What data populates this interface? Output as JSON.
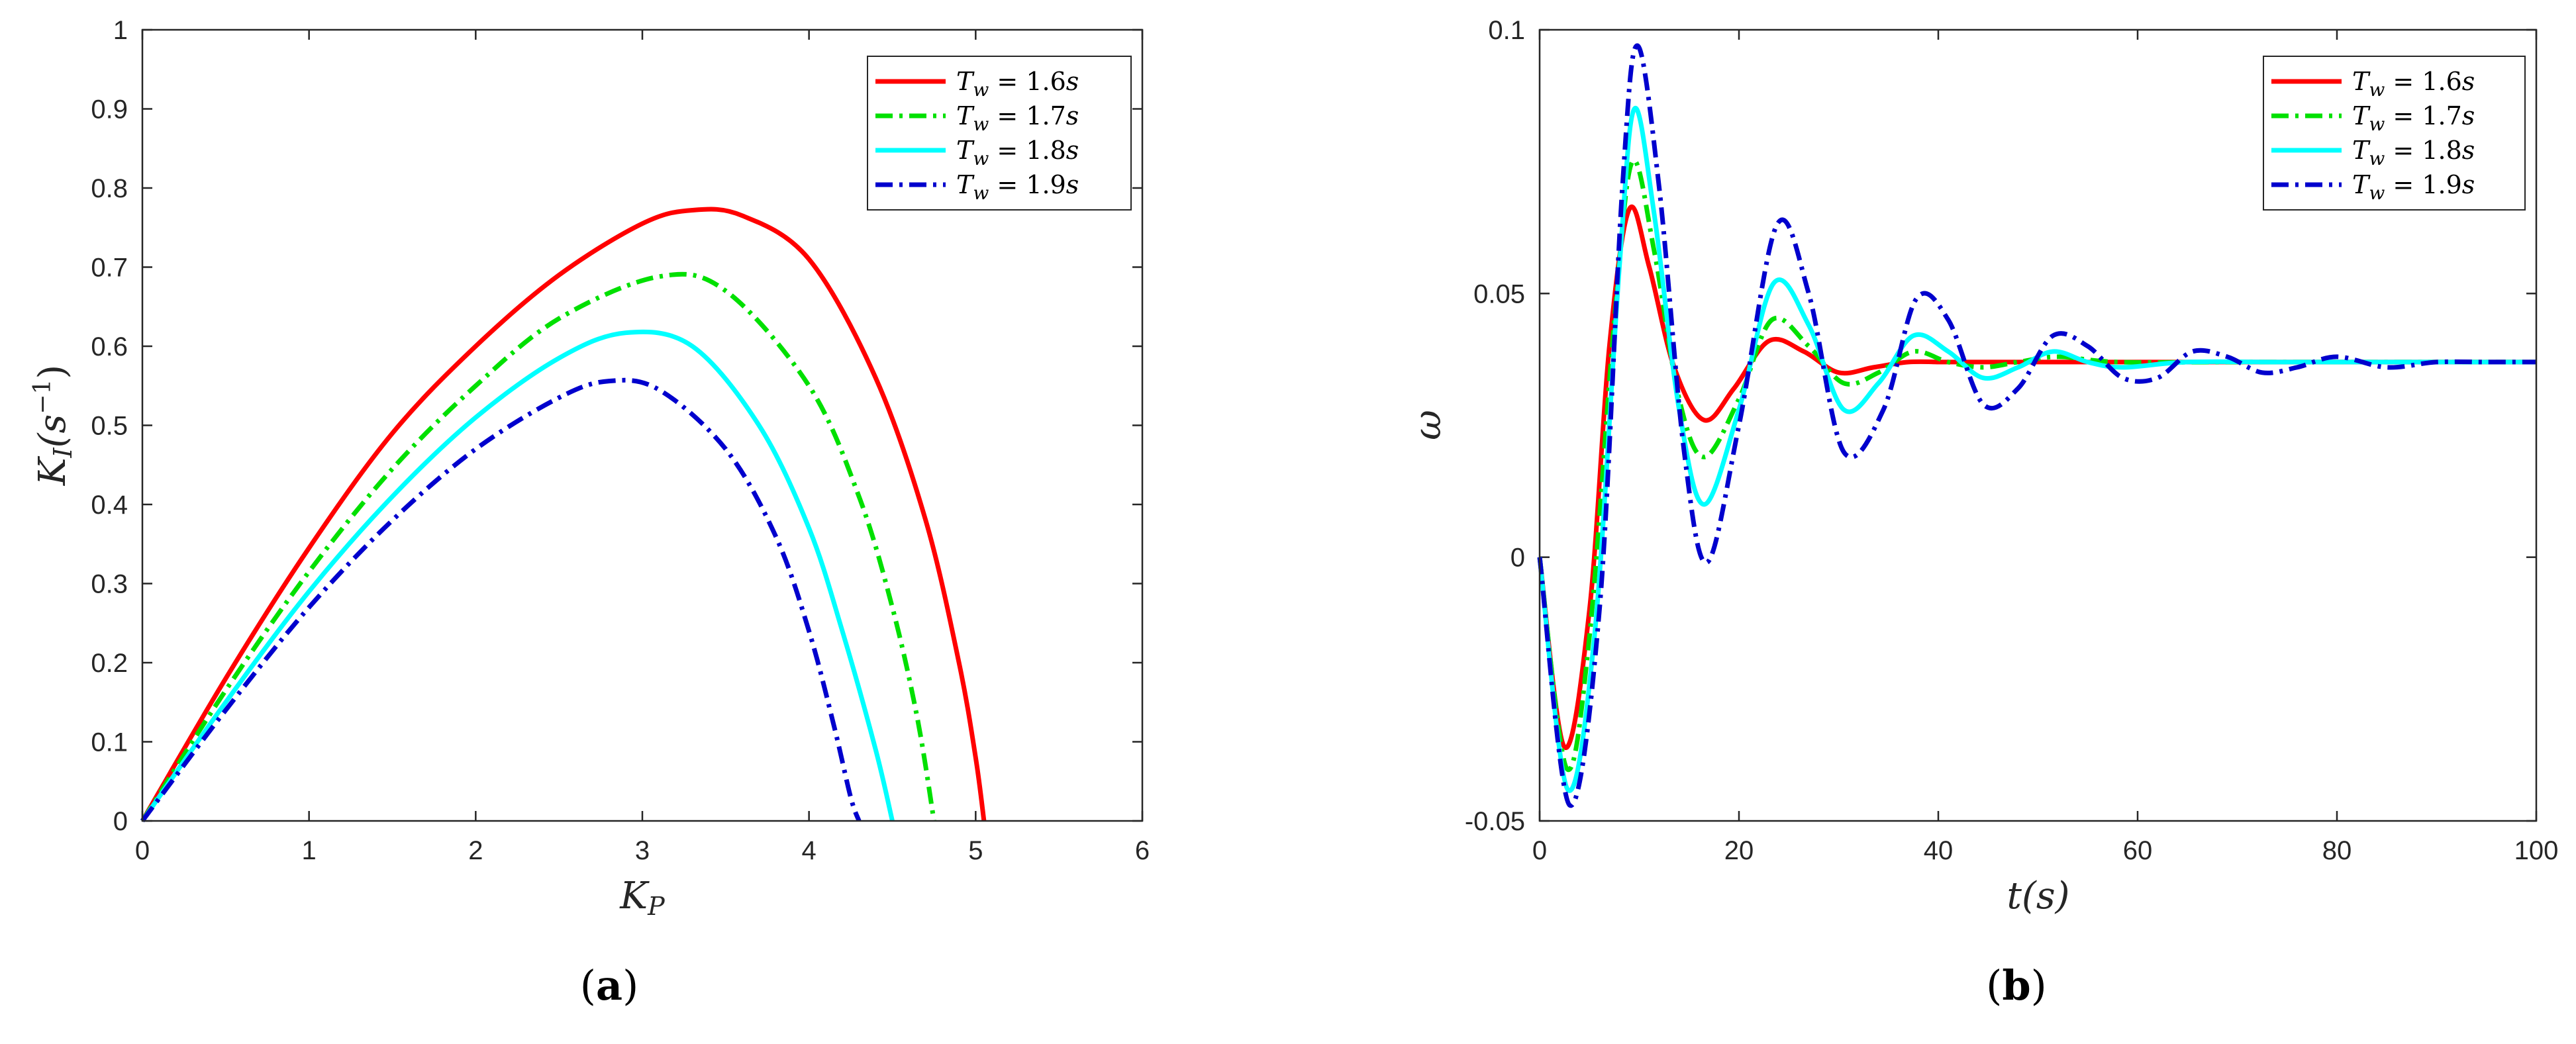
{
  "chart_data": [
    {
      "type": "line",
      "panel_label": "(a)",
      "panel_letter": "a",
      "xlabel": "K",
      "xlabel_sub": "P",
      "ylabel": "K",
      "ylabel_sub": "I",
      "ylabel_unit": "(s",
      "ylabel_exp": "−1",
      "ylabel_close": ")",
      "xlim": [
        0,
        6
      ],
      "ylim": [
        0,
        1
      ],
      "xticks": [
        "0",
        "1",
        "2",
        "3",
        "4",
        "5",
        "6"
      ],
      "yticks": [
        "0",
        "0.1",
        "0.2",
        "0.3",
        "0.4",
        "0.5",
        "0.6",
        "0.7",
        "0.8",
        "0.9",
        "1"
      ],
      "legend_position": "top-right",
      "series": [
        {
          "name": "T_w = 1.6s",
          "name_base": "T",
          "name_sub": "w",
          "name_rest": " = 1.6",
          "name_unit": "s",
          "color": "#ff0000",
          "dash": "solid",
          "x": [
            0,
            0.5,
            1.0,
            1.5,
            2.0,
            2.5,
            3.0,
            3.3,
            3.6,
            4.0,
            4.4,
            4.7,
            4.9,
            5.0,
            5.05
          ],
          "y": [
            0,
            0.18,
            0.345,
            0.49,
            0.6,
            0.69,
            0.755,
            0.772,
            0.765,
            0.71,
            0.56,
            0.38,
            0.2,
            0.08,
            0
          ]
        },
        {
          "name": "T_w = 1.7s",
          "name_base": "T",
          "name_sub": "w",
          "name_rest": " = 1.7",
          "name_unit": "s",
          "color": "#00e000",
          "dash": "dashdot",
          "x": [
            0,
            0.5,
            1.0,
            1.5,
            2.0,
            2.5,
            3.1,
            3.5,
            4.0,
            4.3,
            4.5,
            4.65,
            4.75
          ],
          "y": [
            0,
            0.165,
            0.315,
            0.445,
            0.55,
            0.635,
            0.688,
            0.67,
            0.55,
            0.41,
            0.27,
            0.13,
            0
          ]
        },
        {
          "name": "T_w = 1.8s",
          "name_base": "T",
          "name_sub": "w",
          "name_rest": " = 1.8",
          "name_unit": "s",
          "color": "#00ffff",
          "dash": "solid",
          "x": [
            0,
            0.5,
            1.0,
            1.5,
            2.0,
            2.5,
            2.9,
            3.3,
            3.7,
            4.0,
            4.2,
            4.4,
            4.5
          ],
          "y": [
            0,
            0.15,
            0.29,
            0.41,
            0.51,
            0.585,
            0.617,
            0.6,
            0.5,
            0.37,
            0.24,
            0.09,
            0
          ]
        },
        {
          "name": "T_w = 1.9s",
          "name_base": "T",
          "name_sub": "w",
          "name_rest": " = 1.9",
          "name_unit": "s",
          "color": "#0000cd",
          "dash": "dashdot",
          "x": [
            0,
            0.5,
            1.0,
            1.5,
            2.0,
            2.5,
            2.8,
            3.1,
            3.5,
            3.8,
            4.0,
            4.15,
            4.25,
            4.3
          ],
          "y": [
            0,
            0.14,
            0.27,
            0.38,
            0.47,
            0.535,
            0.556,
            0.545,
            0.47,
            0.36,
            0.24,
            0.12,
            0.03,
            0
          ]
        }
      ]
    },
    {
      "type": "line",
      "panel_label": "(b)",
      "panel_letter": "b",
      "xlabel": "t(s)",
      "ylabel": "ω",
      "xlim": [
        0,
        100
      ],
      "ylim": [
        -0.05,
        0.1
      ],
      "xticks": [
        "0",
        "20",
        "40",
        "60",
        "80",
        "100"
      ],
      "yticks": [
        "-0.05",
        "0",
        "0.05",
        "0.1"
      ],
      "legend_position": "top-right",
      "final_value": 0.037,
      "series": [
        {
          "name": "T_w = 1.6s",
          "name_base": "T",
          "name_sub": "w",
          "name_rest": " = 1.6",
          "name_unit": "s",
          "color": "#ff0000",
          "dash": "solid",
          "x": [
            0,
            2.5,
            5,
            7,
            9,
            11,
            13.5,
            16.5,
            19.5,
            23,
            26.5,
            30,
            33.5,
            37,
            40.5,
            44,
            50,
            60,
            100
          ],
          "y": [
            0,
            -0.036,
            -0.01,
            0.04,
            0.066,
            0.055,
            0.036,
            0.026,
            0.032,
            0.041,
            0.039,
            0.035,
            0.036,
            0.037,
            0.037,
            0.037,
            0.037,
            0.037,
            0.037
          ]
        },
        {
          "name": "T_w = 1.7s",
          "name_base": "T",
          "name_sub": "w",
          "name_rest": " = 1.7",
          "name_unit": "s",
          "color": "#00e000",
          "dash": "dashdot",
          "x": [
            0,
            2.7,
            5,
            7.5,
            9.3,
            11.5,
            14,
            16.5,
            20,
            23.3,
            27,
            30.5,
            34,
            37.5,
            41,
            44.5,
            48,
            52,
            58,
            70,
            100
          ],
          "y": [
            0,
            -0.04,
            -0.015,
            0.045,
            0.075,
            0.058,
            0.03,
            0.019,
            0.03,
            0.045,
            0.04,
            0.033,
            0.035,
            0.039,
            0.037,
            0.036,
            0.037,
            0.038,
            0.037,
            0.037,
            0.037
          ]
        },
        {
          "name": "T_w = 1.8s",
          "name_base": "T",
          "name_sub": "w",
          "name_rest": " = 1.8",
          "name_unit": "s",
          "color": "#00ffff",
          "dash": "solid",
          "x": [
            0,
            2.8,
            5.5,
            8,
            9.5,
            11.5,
            14,
            16.5,
            20,
            23.5,
            27,
            30.5,
            34,
            37.5,
            41,
            44.5,
            48,
            51.5,
            55,
            58.5,
            65,
            75,
            100
          ],
          "y": [
            0,
            -0.044,
            -0.015,
            0.055,
            0.085,
            0.065,
            0.028,
            0.01,
            0.028,
            0.052,
            0.044,
            0.028,
            0.033,
            0.042,
            0.039,
            0.034,
            0.036,
            0.039,
            0.037,
            0.036,
            0.037,
            0.037,
            0.037
          ]
        },
        {
          "name": "T_w = 1.9s",
          "name_base": "T",
          "name_sub": "w",
          "name_rest": " = 1.9",
          "name_unit": "s",
          "color": "#0000cd",
          "dash": "dashdot",
          "x": [
            0,
            3,
            6,
            8.3,
            9.8,
            12,
            14.5,
            16.8,
            20,
            23.8,
            27,
            30.5,
            34.5,
            37.8,
            41,
            44.5,
            48,
            51.5,
            55,
            58.5,
            62,
            65.5,
            69,
            72.5,
            76,
            80,
            85,
            90,
            95,
            100
          ],
          "y": [
            0,
            -0.047,
            -0.01,
            0.07,
            0.097,
            0.07,
            0.02,
            -0.001,
            0.025,
            0.063,
            0.05,
            0.02,
            0.028,
            0.049,
            0.045,
            0.029,
            0.032,
            0.042,
            0.04,
            0.034,
            0.034,
            0.039,
            0.038,
            0.035,
            0.036,
            0.038,
            0.036,
            0.037,
            0.037,
            0.037
          ]
        }
      ]
    }
  ]
}
